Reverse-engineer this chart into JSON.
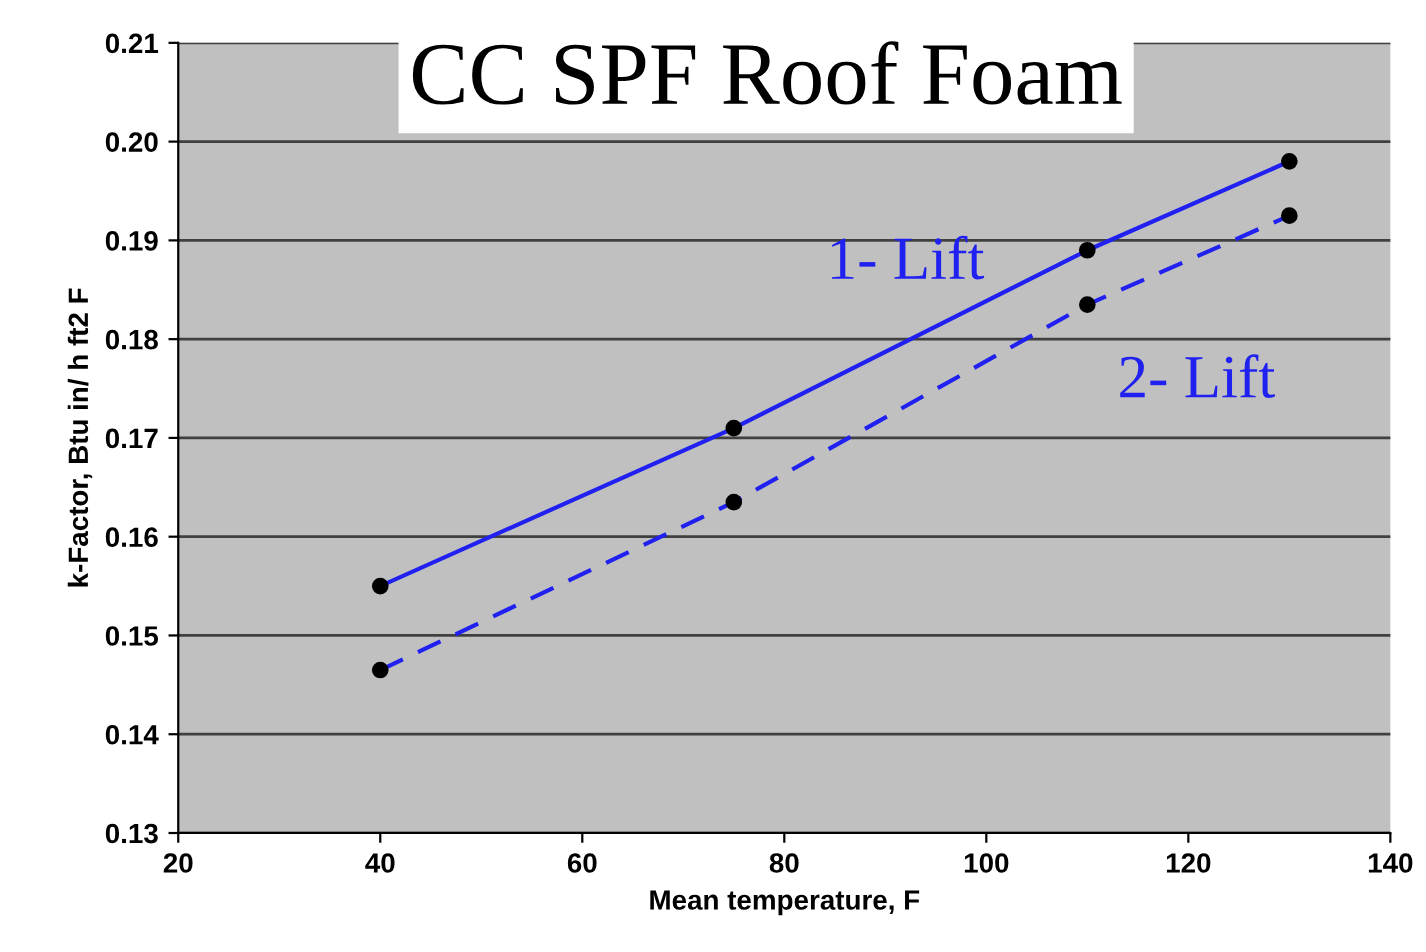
{
  "chart_data": {
    "type": "line",
    "title": "CC SPF Roof Foam",
    "xlabel": "Mean temperature, F",
    "ylabel": "k-Factor, Btu in/ h ft2 F",
    "x": [
      40,
      75,
      110,
      130
    ],
    "series": [
      {
        "name": "1- Lift",
        "color": "#2020f0",
        "line_style": "solid",
        "values": [
          0.155,
          0.171,
          0.189,
          0.198
        ]
      },
      {
        "name": "2- Lift",
        "color": "#2020f0",
        "line_style": "dashed",
        "values": [
          0.1465,
          0.1635,
          0.1835,
          0.1925
        ]
      }
    ],
    "marker": "circle",
    "xlim": [
      20,
      140
    ],
    "xticks": [
      20,
      40,
      60,
      80,
      100,
      120,
      140
    ],
    "ylim": [
      0.13,
      0.21
    ],
    "yticks": [
      {
        "value": 0.13,
        "label": "0.13"
      },
      {
        "value": 0.14,
        "label": "0.14"
      },
      {
        "value": 0.15,
        "label": "0.15"
      },
      {
        "value": 0.16,
        "label": "0.16"
      },
      {
        "value": 0.17,
        "label": "0.17"
      },
      {
        "value": 0.18,
        "label": "0.18"
      },
      {
        "value": 0.19,
        "label": "0.19"
      },
      {
        "value": 0.2,
        "label": "0.20"
      },
      {
        "value": 0.21,
        "label": "0.21"
      }
    ],
    "grid": "y"
  }
}
